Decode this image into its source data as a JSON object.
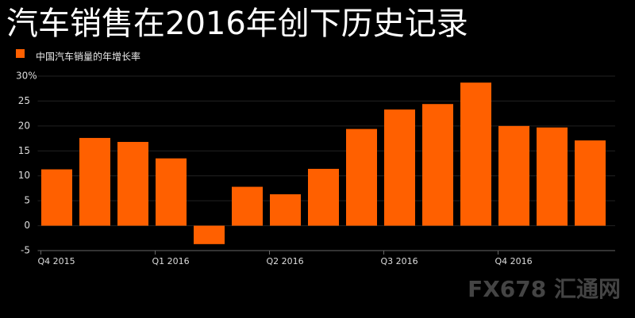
{
  "chart_data": {
    "type": "bar",
    "title": "汽车销售在2016年创下历史记录",
    "categories": [
      "Q4 2015",
      null,
      null,
      "Q1 2016",
      null,
      null,
      "Q2 2016",
      null,
      null,
      "Q3 2016",
      null,
      null,
      "Q4 2016",
      null,
      null
    ],
    "series": [
      {
        "name": "中国汽车销量的年增长率",
        "color": "#ff6000",
        "values": [
          11.3,
          17.6,
          16.8,
          13.5,
          -3.7,
          7.8,
          6.3,
          11.4,
          19.4,
          23.3,
          24.4,
          28.7,
          20.0,
          19.7,
          17.1
        ]
      }
    ],
    "ylim": [
      -5,
      30
    ],
    "yticks": [
      -5,
      0,
      5,
      10,
      15,
      20,
      25,
      {
        "value": 30,
        "label": "30%"
      }
    ],
    "grid": true,
    "watermark": "FX678 汇通网"
  }
}
